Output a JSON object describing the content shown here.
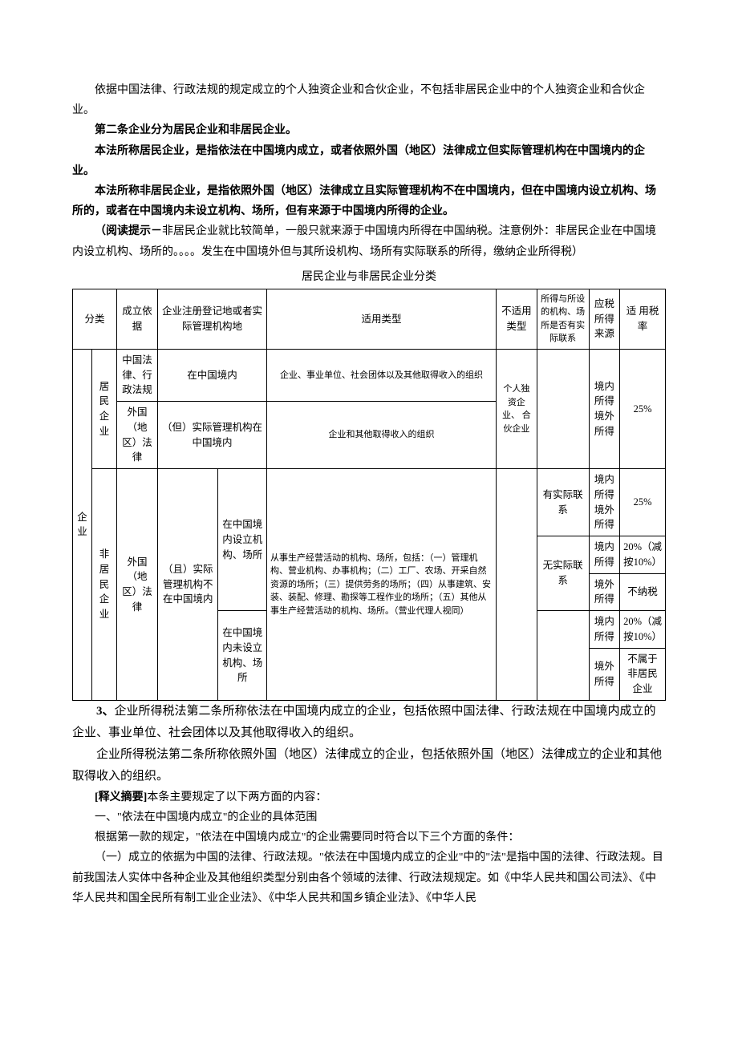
{
  "p1": "依据中国法律、行政法规的规定成立的个人独资企业和合伙企业，不包括非居民企业中的个人独资企业和合伙企业。",
  "p2": "第二条企业分为居民企业和非居民企业。",
  "p3": "本法所称居民企业，是指依法在中国境内成立，或者依照外国（地区）法律成立但实际管理机构在中国境内的企业。",
  "p4": "本法所称非居民企业，是指依照外国（地区）法律成立且实际管理机构不在中国境内，但在中国境内设立机构、场所的，或者在中国境内未设立机构、场所，但有来源于中国境内所得的企业。",
  "p5a": "（阅读提示－",
  "p5b": "非居民企业就比较简单，一般只就来源于中国境内所得在中国纳税。注意例外：非居民企业在中国境内设立机构、场所的。。。。发生在中国境外但与其所设机构、场所有实际联系的所得，缴纳企业所得税）",
  "tableTitle": "居民企业与非居民企业分类",
  "h": {
    "c1": "分类",
    "c2": "成立依据",
    "c3": "企业注册登记地或者实际管理机构地",
    "c4": "适用类型",
    "c5": "不适用类型",
    "c6": "所得与所设的机构、场所是否有实际联系",
    "c7": "应税所得来源",
    "c8": "适 用税率"
  },
  "r": {
    "qiye": "企业",
    "jumin": "居民企业",
    "feijumin": "非居民企业",
    "basis1": "中国法律、行政法规",
    "basis2": "外国（地区）法律",
    "basis3": "外国（地区）法律",
    "reg1": "在中国境内",
    "reg2": "（但）实际管理机构在中国境内",
    "reg3a": "（且）实际管理机构不在中国境内",
    "reg3b1": "在中国境内设立机构、场所",
    "reg3b2": "在中国境内未设立机构、场所",
    "type1": "企业、事业单位、社会团体以及其他取得收入的组织",
    "type2": "企业和其他取得收入的组织",
    "type3": "从事生产经营活动的机构、场所，包括：（一）管理机构、营业机构、办事机构；（二）工厂、农场、开采自然资源的场所；（三）提供劳务的场所；（四）从事建筑、安装、装配、修理、勘探等工程作业的场所；（五）其他从事生产经营活动的机构、场所。（营业代理人视同）",
    "notype": "个人独资企业、 合伙企业",
    "lianxi1": "有实际联系",
    "lianxi2": "无实际联系",
    "src1": "境内所得境外所得",
    "src2": "境内所得境外所得",
    "src3": "境内所得",
    "src4": "境外所得",
    "src5": "境内所得",
    "src6": "境外所得",
    "rate25": "25%",
    "rate20": "20%（减按10%）",
    "rateNo": "不纳税",
    "rateNot": "不属于非居民企业"
  },
  "p6a": "3、",
  "p6b": "企业所得税法第二条所称依法在中国境内成立的企业，包括依照中国法律、行政法规在中国境内成立的企业、事业单位、社会团体以及其他取得收入的组织。",
  "p7": "企业所得税法第二条所称依照外国（地区）法律成立的企业，包括依照外国（地区）法律成立的企业和其他取得收入的组织。",
  "p8a": "[释义摘要]",
  "p8b": "本条主要规定了以下两方面的内容：",
  "p9": "一、\"依法在中国境内成立\"的企业的具体范围",
  "p10": "根据第一款的规定，\"依法在中国境内成立\"的企业需要同时符合以下三个方面的条件：",
  "p11": "（一）成立的依据为中国的法律、行政法规。\"依法在中国境内成立的企业\"中的\"法\"是指中国的法律、行政法规。目前我国法人实体中各种企业及其他组织类型分别由各个领域的法律、行政法规规定。如《中华人民共和国公司法》、《中华人民共和国全民所有制工业企业法》、《中华人民共和国乡镇企业法》、《中华人民"
}
